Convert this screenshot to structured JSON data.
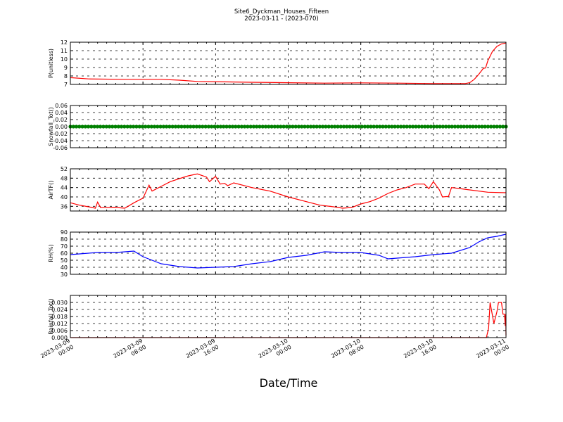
{
  "figure": {
    "title": "Site6_Dyckman_Houses_Fifteen",
    "subtitle": "2023-03-11 - (2023-070)",
    "xlabel": "Date/Time"
  },
  "chart_data": {
    "type": "line",
    "x_range": [
      "2023-03-09 00:00",
      "2023-03-11 00:00"
    ],
    "x_ticks": [
      {
        "time": "2023-03-09 00:00",
        "line1": "2023-03-09",
        "line2": "00:00"
      },
      {
        "time": "2023-03-09 08:00",
        "line1": "2023-03-09",
        "line2": "08:00"
      },
      {
        "time": "2023-03-09 16:00",
        "line1": "2023-03-09",
        "line2": "16:00"
      },
      {
        "time": "2023-03-10 00:00",
        "line1": "2023-03-10",
        "line2": "00:00"
      },
      {
        "time": "2023-03-10 08:00",
        "line1": "2023-03-10",
        "line2": "08:00"
      },
      {
        "time": "2023-03-10 16:00",
        "line1": "2023-03-10",
        "line2": "16:00"
      },
      {
        "time": "2023-03-11 00:00",
        "line1": "2023-03-11",
        "line2": "00:00"
      }
    ],
    "grid": true,
    "panels": [
      {
        "ylabel": "P(unitless)",
        "ylim": [
          7,
          12
        ],
        "yticks": [
          7,
          8,
          9,
          10,
          11,
          12
        ],
        "color": "#ff0000",
        "series": [
          {
            "x": "2023-03-09 00:00",
            "y": 7.8
          },
          {
            "x": "2023-03-09 02:00",
            "y": 7.65
          },
          {
            "x": "2023-03-09 06:00",
            "y": 7.6
          },
          {
            "x": "2023-03-09 10:00",
            "y": 7.6
          },
          {
            "x": "2023-03-09 12:00",
            "y": 7.5
          },
          {
            "x": "2023-03-09 14:00",
            "y": 7.35
          },
          {
            "x": "2023-03-09 17:00",
            "y": 7.3
          },
          {
            "x": "2023-03-09 20:00",
            "y": 7.25
          },
          {
            "x": "2023-03-10 00:00",
            "y": 7.2
          },
          {
            "x": "2023-03-10 04:00",
            "y": 7.15
          },
          {
            "x": "2023-03-10 08:00",
            "y": 7.18
          },
          {
            "x": "2023-03-10 12:00",
            "y": 7.15
          },
          {
            "x": "2023-03-10 16:00",
            "y": 7.1
          },
          {
            "x": "2023-03-10 19:30",
            "y": 7.1
          },
          {
            "x": "2023-03-10 20:00",
            "y": 7.2
          },
          {
            "x": "2023-03-10 20:30",
            "y": 7.6
          },
          {
            "x": "2023-03-10 21:00",
            "y": 8.2
          },
          {
            "x": "2023-03-10 21:30",
            "y": 8.9
          },
          {
            "x": "2023-03-10 21:45",
            "y": 8.95
          },
          {
            "x": "2023-03-10 22:00",
            "y": 9.8
          },
          {
            "x": "2023-03-10 22:30",
            "y": 10.9
          },
          {
            "x": "2023-03-10 23:00",
            "y": 11.5
          },
          {
            "x": "2023-03-10 23:30",
            "y": 11.8
          },
          {
            "x": "2023-03-11 00:00",
            "y": 11.9
          }
        ]
      },
      {
        "ylabel": "Snowfall_Tot()",
        "ylim": [
          -0.06,
          0.06
        ],
        "yticks": [
          -0.06,
          -0.04,
          -0.02,
          0.0,
          0.02,
          0.04,
          0.06
        ],
        "tick_format": 2,
        "color": "#008000",
        "marker": "dot",
        "constant": {
          "from": "2023-03-09 00:00",
          "to": "2023-03-11 00:00",
          "y": 0.0
        }
      },
      {
        "ylabel": "AirTF()",
        "ylim": [
          34,
          52
        ],
        "yticks": [
          36,
          40,
          44,
          48,
          52
        ],
        "color": "#ff0000",
        "series": [
          {
            "x": "2023-03-09 00:00",
            "y": 37.5
          },
          {
            "x": "2023-03-09 01:00",
            "y": 36.5
          },
          {
            "x": "2023-03-09 02:00",
            "y": 35.8
          },
          {
            "x": "2023-03-09 02:45",
            "y": 35.2
          },
          {
            "x": "2023-03-09 03:00",
            "y": 37.8
          },
          {
            "x": "2023-03-09 03:20",
            "y": 35.4
          },
          {
            "x": "2023-03-09 05:00",
            "y": 35.5
          },
          {
            "x": "2023-03-09 06:00",
            "y": 35.2
          },
          {
            "x": "2023-03-09 07:00",
            "y": 37.5
          },
          {
            "x": "2023-03-09 08:00",
            "y": 39.5
          },
          {
            "x": "2023-03-09 08:40",
            "y": 45.0
          },
          {
            "x": "2023-03-09 09:00",
            "y": 42.5
          },
          {
            "x": "2023-03-09 10:00",
            "y": 44.5
          },
          {
            "x": "2023-03-09 11:00",
            "y": 46.5
          },
          {
            "x": "2023-03-09 12:00",
            "y": 47.8
          },
          {
            "x": "2023-03-09 13:00",
            "y": 49.0
          },
          {
            "x": "2023-03-09 14:00",
            "y": 49.8
          },
          {
            "x": "2023-03-09 15:00",
            "y": 48.5
          },
          {
            "x": "2023-03-09 15:20",
            "y": 46.5
          },
          {
            "x": "2023-03-09 16:00",
            "y": 48.8
          },
          {
            "x": "2023-03-09 16:30",
            "y": 45.5
          },
          {
            "x": "2023-03-09 17:00",
            "y": 45.8
          },
          {
            "x": "2023-03-09 17:20",
            "y": 44.8
          },
          {
            "x": "2023-03-09 18:00",
            "y": 46.0
          },
          {
            "x": "2023-03-09 20:00",
            "y": 44.0
          },
          {
            "x": "2023-03-09 22:00",
            "y": 42.5
          },
          {
            "x": "2023-03-10 00:00",
            "y": 40.0
          },
          {
            "x": "2023-03-10 02:00",
            "y": 38.0
          },
          {
            "x": "2023-03-10 03:30",
            "y": 36.5
          },
          {
            "x": "2023-03-10 05:00",
            "y": 35.8
          },
          {
            "x": "2023-03-10 06:00",
            "y": 35.2
          },
          {
            "x": "2023-03-10 07:00",
            "y": 35.5
          },
          {
            "x": "2023-03-10 08:00",
            "y": 37.0
          },
          {
            "x": "2023-03-10 09:00",
            "y": 38.0
          },
          {
            "x": "2023-03-10 10:00",
            "y": 39.5
          },
          {
            "x": "2023-03-10 11:00",
            "y": 41.5
          },
          {
            "x": "2023-03-10 12:00",
            "y": 43.0
          },
          {
            "x": "2023-03-10 13:00",
            "y": 44.0
          },
          {
            "x": "2023-03-10 14:00",
            "y": 45.5
          },
          {
            "x": "2023-03-10 15:00",
            "y": 45.5
          },
          {
            "x": "2023-03-10 15:30",
            "y": 43.5
          },
          {
            "x": "2023-03-10 16:00",
            "y": 46.5
          },
          {
            "x": "2023-03-10 16:40",
            "y": 43.0
          },
          {
            "x": "2023-03-10 17:00",
            "y": 40.0
          },
          {
            "x": "2023-03-10 17:40",
            "y": 40.2
          },
          {
            "x": "2023-03-10 18:00",
            "y": 44.0
          },
          {
            "x": "2023-03-10 20:00",
            "y": 43.0
          },
          {
            "x": "2023-03-10 22:00",
            "y": 42.0
          },
          {
            "x": "2023-03-11 00:00",
            "y": 41.8
          }
        ]
      },
      {
        "ylabel": "RH(%)",
        "ylim": [
          30,
          90
        ],
        "yticks": [
          30,
          40,
          50,
          60,
          70,
          80,
          90
        ],
        "color": "#0000ff",
        "series": [
          {
            "x": "2023-03-09 00:00",
            "y": 58
          },
          {
            "x": "2023-03-09 02:00",
            "y": 60
          },
          {
            "x": "2023-03-09 03:00",
            "y": 61
          },
          {
            "x": "2023-03-09 05:00",
            "y": 61
          },
          {
            "x": "2023-03-09 07:00",
            "y": 63
          },
          {
            "x": "2023-03-09 08:00",
            "y": 55
          },
          {
            "x": "2023-03-09 09:00",
            "y": 50
          },
          {
            "x": "2023-03-09 10:00",
            "y": 45
          },
          {
            "x": "2023-03-09 12:00",
            "y": 41
          },
          {
            "x": "2023-03-09 14:00",
            "y": 39
          },
          {
            "x": "2023-03-09 16:00",
            "y": 40
          },
          {
            "x": "2023-03-09 18:00",
            "y": 41
          },
          {
            "x": "2023-03-09 20:00",
            "y": 45
          },
          {
            "x": "2023-03-09 22:00",
            "y": 48
          },
          {
            "x": "2023-03-10 00:00",
            "y": 54
          },
          {
            "x": "2023-03-10 02:00",
            "y": 57
          },
          {
            "x": "2023-03-10 04:00",
            "y": 62
          },
          {
            "x": "2023-03-10 06:00",
            "y": 61
          },
          {
            "x": "2023-03-10 08:00",
            "y": 61
          },
          {
            "x": "2023-03-10 10:00",
            "y": 57
          },
          {
            "x": "2023-03-10 11:00",
            "y": 52
          },
          {
            "x": "2023-03-10 12:00",
            "y": 53
          },
          {
            "x": "2023-03-10 14:00",
            "y": 55
          },
          {
            "x": "2023-03-10 16:00",
            "y": 58
          },
          {
            "x": "2023-03-10 18:00",
            "y": 60
          },
          {
            "x": "2023-03-10 20:00",
            "y": 68
          },
          {
            "x": "2023-03-10 21:00",
            "y": 76
          },
          {
            "x": "2023-03-10 22:00",
            "y": 82
          },
          {
            "x": "2023-03-10 23:00",
            "y": 84
          },
          {
            "x": "2023-03-11 00:00",
            "y": 87
          }
        ]
      },
      {
        "ylabel": "Rainfall_Tot()",
        "ylim": [
          0,
          0.036
        ],
        "yticks": [
          0.0,
          0.006,
          0.012,
          0.018,
          0.024,
          0.03
        ],
        "tick_format": 3,
        "color": "#ff0000",
        "series": [
          {
            "x": "2023-03-09 00:00",
            "y": 0
          },
          {
            "x": "2023-03-10 21:50",
            "y": 0
          },
          {
            "x": "2023-03-10 22:05",
            "y": 0.008
          },
          {
            "x": "2023-03-10 22:15",
            "y": 0.03
          },
          {
            "x": "2023-03-10 22:40",
            "y": 0.012
          },
          {
            "x": "2023-03-10 23:00",
            "y": 0.022
          },
          {
            "x": "2023-03-10 23:10",
            "y": 0.03
          },
          {
            "x": "2023-03-10 23:30",
            "y": 0.03
          },
          {
            "x": "2023-03-10 23:40",
            "y": 0.02
          },
          {
            "x": "2023-03-10 23:50",
            "y": 0.02
          },
          {
            "x": "2023-03-10 23:55",
            "y": 0.01
          },
          {
            "x": "2023-03-10 23:58",
            "y": 0.02
          },
          {
            "x": "2023-03-11 00:00",
            "y": 0.002
          }
        ]
      }
    ]
  }
}
